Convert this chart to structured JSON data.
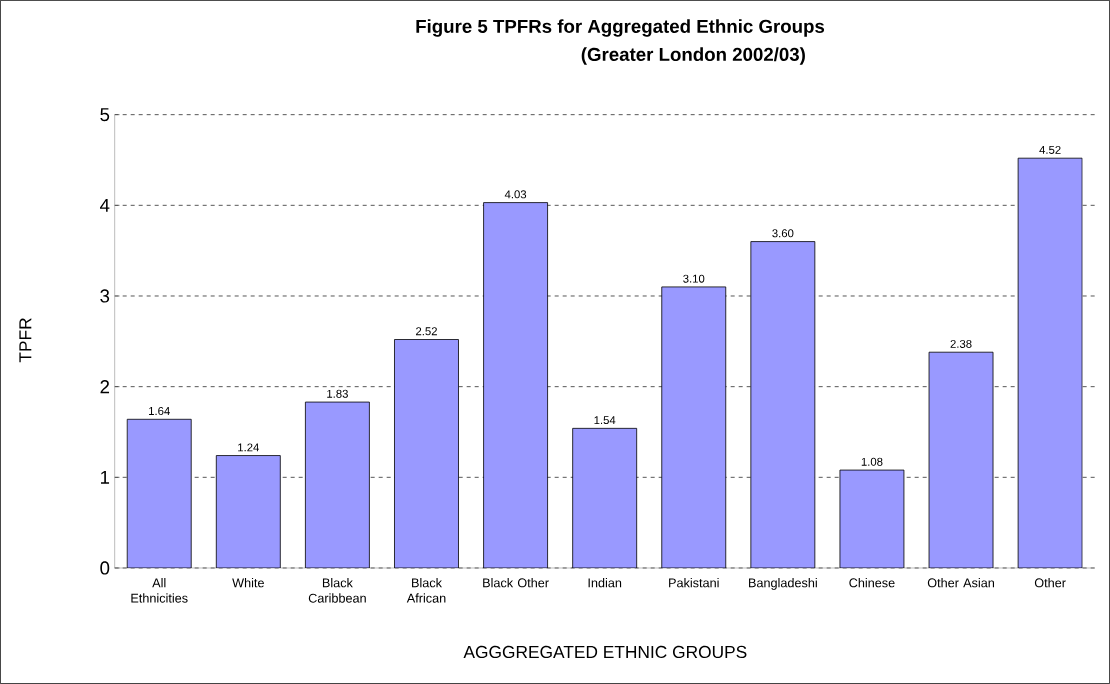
{
  "chart_data": {
    "type": "bar",
    "title": "Figure 5      TPFRs for Aggregated Ethnic Groups",
    "subtitle": "(Greater London 2002/03)",
    "xlabel": "AGGGREGATED ETHNIC GROUPS",
    "ylabel": "TPFR",
    "categories": [
      "All Ethnicities",
      "White",
      "Black Caribbean",
      "Black African",
      "Black Other",
      "Indian",
      "Pakistani",
      "Bangladeshi",
      "Chinese",
      "Other Asian",
      "Other"
    ],
    "values": [
      1.64,
      1.24,
      1.83,
      2.52,
      4.03,
      1.54,
      3.1,
      3.6,
      1.08,
      2.38,
      4.52
    ],
    "value_labels": [
      "1.64",
      "1.24",
      "1.83",
      "2.52",
      "4.03",
      "1.54",
      "3.10",
      "3.60",
      "1.08",
      "2.38",
      "4.52"
    ],
    "color": "#9999ff",
    "ylim": [
      0,
      5
    ],
    "yticks": [
      0,
      1,
      2,
      3,
      4,
      5
    ],
    "grid": "y"
  }
}
